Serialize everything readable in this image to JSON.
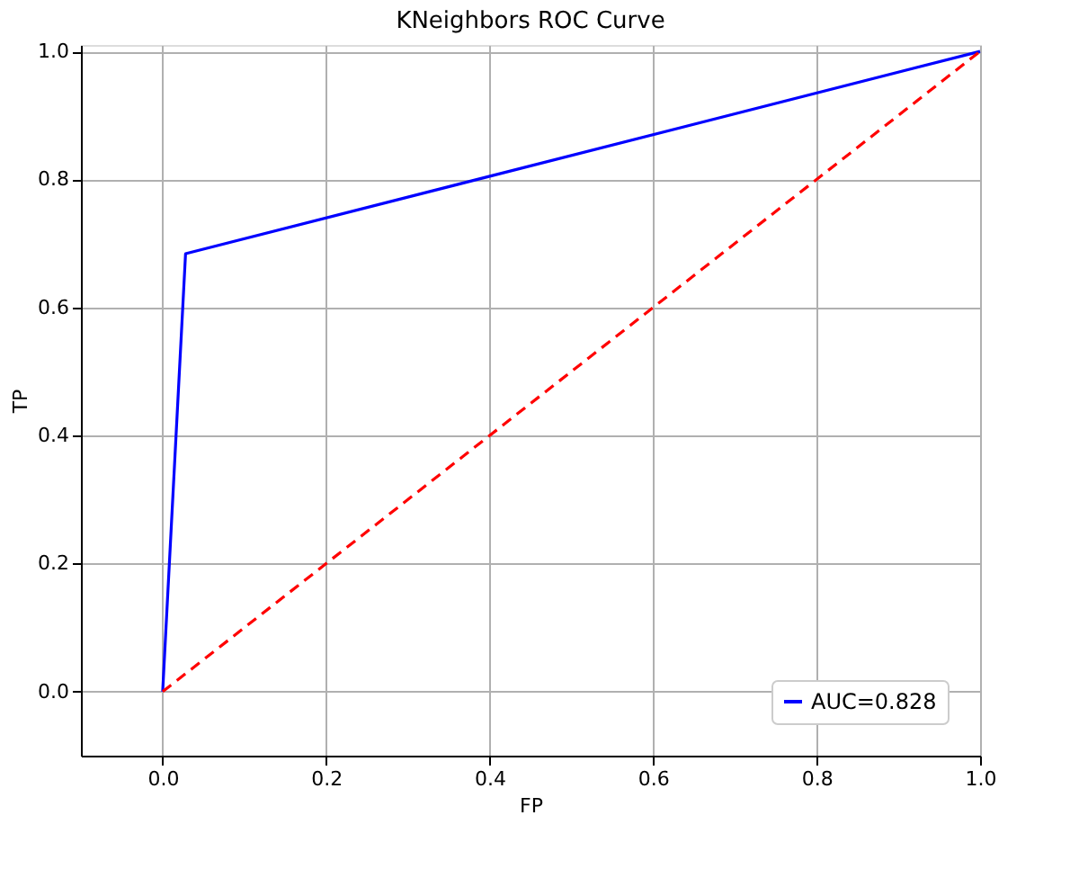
{
  "chart_data": {
    "type": "line",
    "title": "KNeighbors ROC Curve",
    "xlabel": "FP",
    "ylabel": "TP",
    "series": [
      {
        "name": "AUC=0.828",
        "color": "#0000ff",
        "x": [
          0,
          0.028,
          1.0
        ],
        "values": [
          0,
          0.684,
          1.0
        ],
        "line_style": "solid"
      },
      {
        "color": "#ff0000",
        "x": [
          0,
          1.0
        ],
        "values": [
          0,
          1.0
        ],
        "line_style": "dashed"
      }
    ],
    "xlim": [
      -0.1,
      1.0
    ],
    "ylim": [
      -0.1,
      1.01
    ],
    "xticks": [
      {
        "value": 0,
        "label": "0.0"
      },
      {
        "value": 0.2,
        "label": "0.2"
      },
      {
        "value": 0.4,
        "label": "0.4"
      },
      {
        "value": 0.6,
        "label": "0.6"
      },
      {
        "value": 0.8,
        "label": "0.8"
      },
      {
        "value": 1.0,
        "label": "1.0"
      }
    ],
    "yticks": [
      {
        "value": 0,
        "label": "0.0"
      },
      {
        "value": 0.2,
        "label": "0.2"
      },
      {
        "value": 0.4,
        "label": "0.4"
      },
      {
        "value": 0.6,
        "label": "0.6"
      },
      {
        "value": 0.8,
        "label": "0.8"
      },
      {
        "value": 1.0,
        "label": "1.0"
      }
    ],
    "grid": true,
    "legend": "bottom right",
    "marker": "none"
  }
}
